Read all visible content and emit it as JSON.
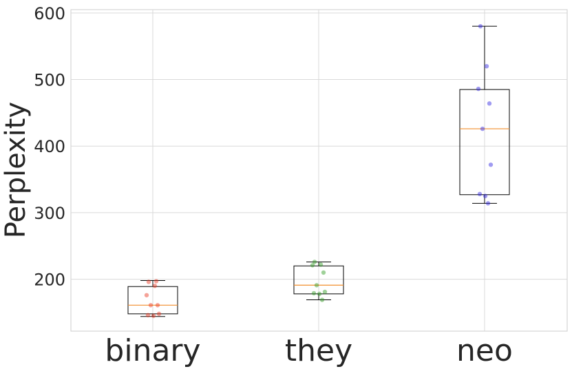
{
  "chart_data": {
    "type": "box",
    "title": "",
    "xlabel": "",
    "ylabel": "Perplexity",
    "ylim": [
      122,
      605
    ],
    "yticks": [
      200,
      300,
      400,
      500,
      600
    ],
    "grid": true,
    "categories": [
      "binary",
      "they",
      "neo"
    ],
    "boxes": [
      {
        "category": "binary",
        "whisker_low": 144,
        "q1": 148,
        "median": 161,
        "q3": 189,
        "whisker_high": 198
      },
      {
        "category": "they",
        "whisker_low": 169,
        "q1": 178,
        "median": 191,
        "q3": 220,
        "whisker_high": 226
      },
      {
        "category": "neo",
        "whisker_low": 314,
        "q1": 327,
        "median": 426,
        "q3": 485,
        "whisker_high": 580
      }
    ],
    "points": [
      {
        "category": "binary",
        "color": "#e8311a",
        "values": [
          196,
          190,
          176,
          161,
          161,
          148,
          146,
          145,
          197
        ]
      },
      {
        "category": "they",
        "color": "#2a9a1c",
        "values": [
          226,
          222,
          221,
          210,
          191,
          181,
          179,
          178,
          169
        ]
      },
      {
        "category": "neo",
        "color": "#2c22e0",
        "values": [
          580,
          520,
          486,
          464,
          426,
          372,
          328,
          325,
          314
        ]
      }
    ],
    "colors": {
      "median": "#f28e2b",
      "box": "#000000",
      "grid": "#d9d9d9"
    }
  }
}
